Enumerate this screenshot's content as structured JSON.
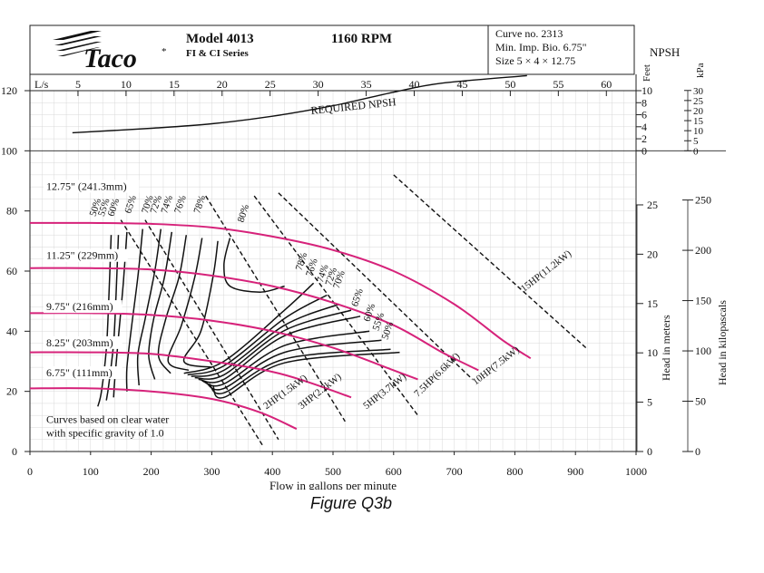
{
  "header": {
    "brand": "Taco",
    "brand_mark": "*",
    "model": "Model 4013",
    "series": "FI & CI Series",
    "rpm": "1160 RPM",
    "curve_no": "Curve no. 2313",
    "min_imp": "Min. Imp. Bio. 6.75\"",
    "size": "Size 5 × 4 × 12.75",
    "npsh_label": "NPSH"
  },
  "caption": "Figure Q3b",
  "chart_data": {
    "type": "line",
    "title": "Model 4013 1160 RPM",
    "xlabel": "Flow in gallons per minute",
    "ylabel_left": "",
    "x_range": [
      0,
      1000
    ],
    "y_range": [
      0,
      120
    ],
    "x_ticks": [
      0,
      100,
      200,
      300,
      400,
      500,
      600,
      700,
      800,
      900,
      1000
    ],
    "y_ticks": [
      0,
      20,
      40,
      60,
      80,
      100,
      120
    ],
    "ls_axis": {
      "label": "L/s",
      "ticks": [
        5,
        10,
        15,
        20,
        25,
        30,
        35,
        40,
        45,
        50,
        55,
        60
      ]
    },
    "meters_axis": {
      "label": "Head in meters",
      "ticks": [
        0,
        5,
        10,
        15,
        20,
        25
      ]
    },
    "kpa_axis": {
      "label": "Head in kilopascals",
      "ticks": [
        0,
        50,
        100,
        150,
        200,
        250
      ]
    },
    "npsh_feet_axis": {
      "label": "Feet",
      "ticks": [
        0,
        2,
        4,
        6,
        8,
        10
      ]
    },
    "npsh_kpa_axis": {
      "label": "kPa",
      "ticks": [
        0,
        5,
        10,
        15,
        20,
        25,
        30
      ]
    },
    "impeller_curves": [
      {
        "name": "12.75\" (241.3mm)",
        "points": [
          [
            0,
            76
          ],
          [
            100,
            76
          ],
          [
            200,
            75.7
          ],
          [
            300,
            74.5
          ],
          [
            400,
            71.5
          ],
          [
            500,
            67
          ],
          [
            600,
            60
          ],
          [
            700,
            49
          ],
          [
            780,
            37
          ],
          [
            826,
            31
          ]
        ]
      },
      {
        "name": "11.25\" (229mm)",
        "points": [
          [
            0,
            61
          ],
          [
            100,
            61
          ],
          [
            200,
            60.5
          ],
          [
            300,
            58.5
          ],
          [
            400,
            55
          ],
          [
            500,
            49.5
          ],
          [
            600,
            42
          ],
          [
            680,
            33
          ],
          [
            740,
            27
          ]
        ]
      },
      {
        "name": "9.75\" (216mm)",
        "points": [
          [
            0,
            46
          ],
          [
            100,
            46
          ],
          [
            200,
            45.4
          ],
          [
            300,
            43.5
          ],
          [
            400,
            40
          ],
          [
            500,
            34.5
          ],
          [
            600,
            27
          ],
          [
            640,
            24
          ]
        ]
      },
      {
        "name": "8.25\" (203mm)",
        "points": [
          [
            0,
            33
          ],
          [
            100,
            33
          ],
          [
            200,
            32.5
          ],
          [
            300,
            30
          ],
          [
            400,
            26.5
          ],
          [
            460,
            23
          ],
          [
            530,
            18
          ]
        ]
      },
      {
        "name": "6.75\" (111mm)",
        "points": [
          [
            0,
            21
          ],
          [
            100,
            21
          ],
          [
            200,
            20
          ],
          [
            300,
            17.5
          ],
          [
            380,
            13
          ],
          [
            440,
            7.5
          ]
        ]
      }
    ],
    "efficiency_labels": [
      "50%",
      "55%",
      "60%",
      "65%",
      "70%",
      "72%",
      "74%",
      "76%",
      "78%",
      "80%"
    ],
    "efficiency_labels_right": [
      "78%",
      "76%",
      "74%",
      "72%",
      "70%",
      "65%",
      "60%",
      "55%",
      "50%"
    ],
    "power_lines": [
      "2HP(1.5kW)",
      "3HP(2.2kW)",
      "5HP(3.7kW)",
      "7.5HP(6.6kW)",
      "10HP(7.5kW)",
      "15HP(11.2kW)"
    ],
    "npsh": {
      "name": "REQUIRED NPSH",
      "points": [
        [
          70,
          106
        ],
        [
          200,
          107.5
        ],
        [
          300,
          109
        ],
        [
          400,
          111.5
        ],
        [
          500,
          115
        ],
        [
          600,
          119.5
        ],
        [
          680,
          122.5
        ],
        [
          820,
          125
        ]
      ]
    },
    "note_line1": "Curves based on clear water",
    "note_line2": "with specific gravity of 1.0"
  }
}
